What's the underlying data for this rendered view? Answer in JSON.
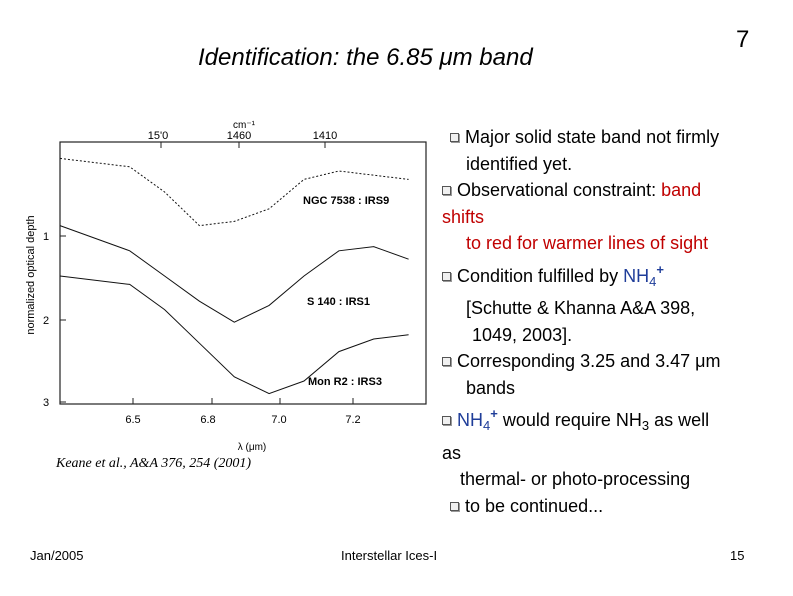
{
  "slide": {
    "title": "Identification: the 6.85 μm band",
    "number": "7",
    "footer_left": "Jan/2005",
    "footer_center": "Interstellar Ices-I",
    "footer_right": "15"
  },
  "bullets": {
    "b1": "Major solid state band not firmly",
    "b1b": "identified yet.",
    "b2": "Observational constraint: ",
    "b2_red1": "band",
    "b2_red2": "shifts",
    "b2b": "to red for warmer lines of sight",
    "b3": "Condition fulfilled by ",
    "b3_nh": "NH",
    "b3_sub": "4",
    "b3_sup": "+",
    "b3b": "[Schutte & Khanna A&A 398,",
    "b3c": "1049, 2003].",
    "b4": "Corresponding  3.25 and 3.47 μm",
    "b4b": "bands",
    "b5_nh": "NH",
    "b5_sub": "4",
    "b5_sup": "+",
    "b5_mid": " would require NH",
    "b5_sub2": "3",
    "b5_end": " as well",
    "b5b": "as",
    "b5c": "thermal- or photo-processing",
    "b6": "to be continued..."
  },
  "figure": {
    "top_unit": "cm⁻¹",
    "top_ticks": [
      "15'0",
      "1460",
      "1410"
    ],
    "bottom_ticks": [
      "6.5",
      "6.8",
      "7.0",
      "7.2"
    ],
    "bottom_label": "λ (μm)",
    "left_ticks": [
      "1",
      "2",
      "3"
    ],
    "ylabel": "normalized optical depth",
    "source_labels": [
      "NGC 7538 : IRS9",
      "S 140 : IRS1",
      "Mon R2 : IRS3"
    ],
    "citation": "Keane et al., A&A 376, 254 (2001)"
  },
  "chart_data": {
    "type": "line",
    "title": "",
    "xlabel": "λ (μm)",
    "ylabel": "normalized optical depth",
    "x_ticks": [
      6.5,
      6.8,
      7.0,
      7.2
    ],
    "y_ticks": [
      1,
      2,
      3
    ],
    "series": [
      {
        "name": "NGC 7538 : IRS9",
        "x": [
          6.3,
          6.5,
          6.6,
          6.7,
          6.8,
          6.9,
          7.0,
          7.1,
          7.2,
          7.3
        ],
        "values": [
          0.1,
          0.2,
          0.5,
          0.9,
          0.85,
          0.7,
          0.35,
          0.25,
          0.3,
          0.35
        ]
      },
      {
        "name": "S 140 : IRS1",
        "x": [
          6.3,
          6.5,
          6.6,
          6.7,
          6.8,
          6.9,
          7.0,
          7.1,
          7.2,
          7.3
        ],
        "values": [
          0.9,
          1.2,
          1.5,
          1.8,
          2.05,
          1.85,
          1.5,
          1.2,
          1.15,
          1.3
        ]
      },
      {
        "name": "Mon R2 : IRS3",
        "x": [
          6.3,
          6.5,
          6.6,
          6.7,
          6.8,
          6.9,
          7.0,
          7.1,
          7.2,
          7.3
        ],
        "values": [
          1.5,
          1.6,
          1.9,
          2.3,
          2.7,
          2.9,
          2.75,
          2.4,
          2.25,
          2.2
        ]
      }
    ]
  }
}
